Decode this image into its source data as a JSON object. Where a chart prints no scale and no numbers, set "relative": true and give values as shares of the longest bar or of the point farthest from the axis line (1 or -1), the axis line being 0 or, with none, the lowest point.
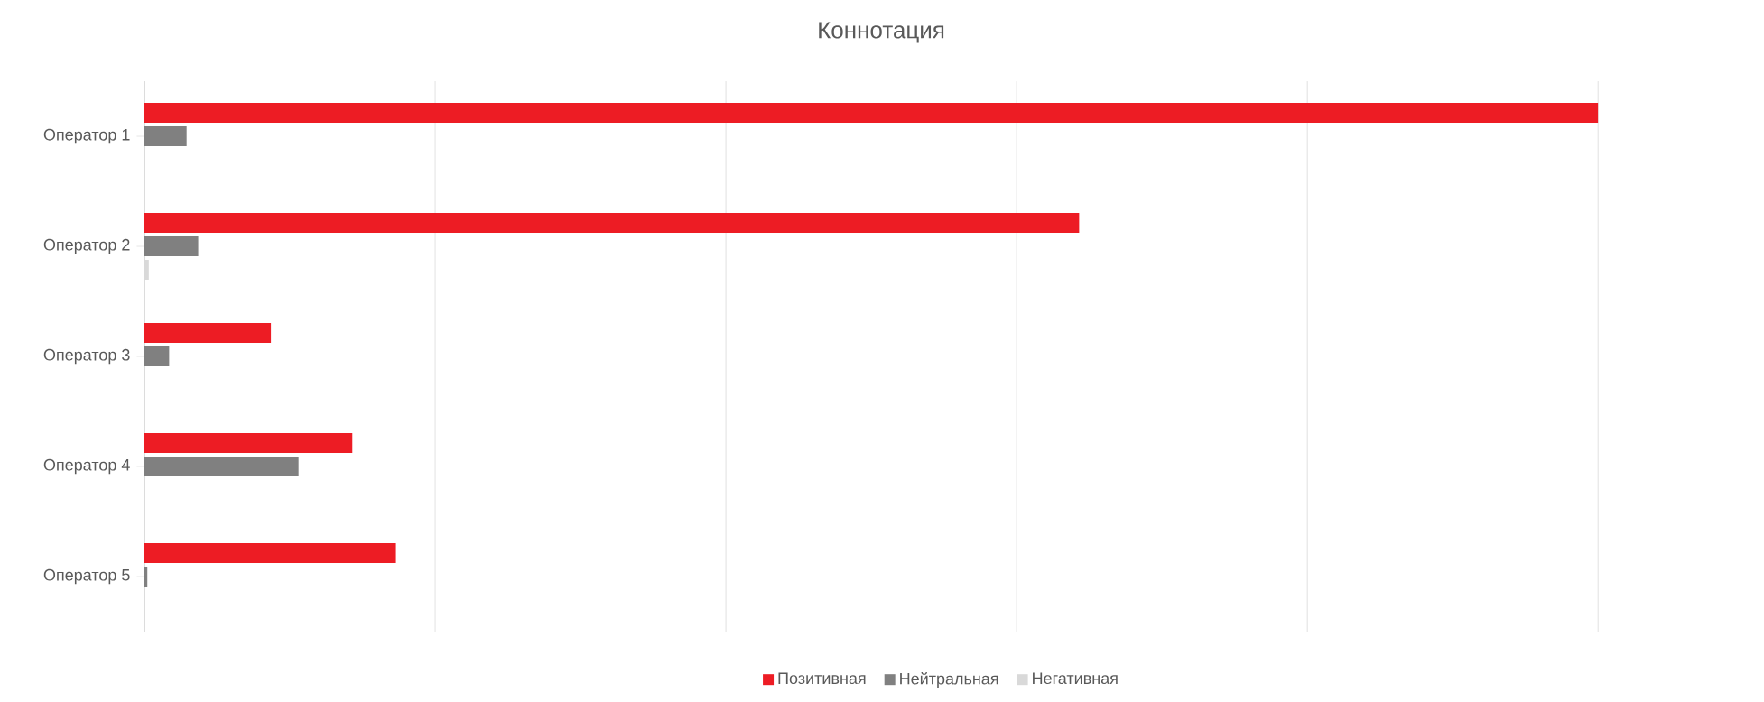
{
  "chart_data": {
    "type": "bar",
    "orientation": "horizontal",
    "relative": true,
    "title": "Коннотация",
    "categories": [
      "Оператор 1",
      "Оператор 2",
      "Оператор 3",
      "Оператор 4",
      "Оператор 5"
    ],
    "series": [
      {
        "name": "Позитивная",
        "color": "#ed1c24",
        "values": [
          1,
          0.643,
          0.087,
          0.143,
          0.173
        ]
      },
      {
        "name": "Нейтральная",
        "color": "#808080",
        "values": [
          0.029,
          0.037,
          0.017,
          0.106,
          0.002
        ]
      },
      {
        "name": "Негативная",
        "color": "#d9d9d9",
        "values": [
          null,
          0.003,
          null,
          null,
          null
        ]
      }
    ],
    "grid": "x",
    "legend": "bottom"
  }
}
